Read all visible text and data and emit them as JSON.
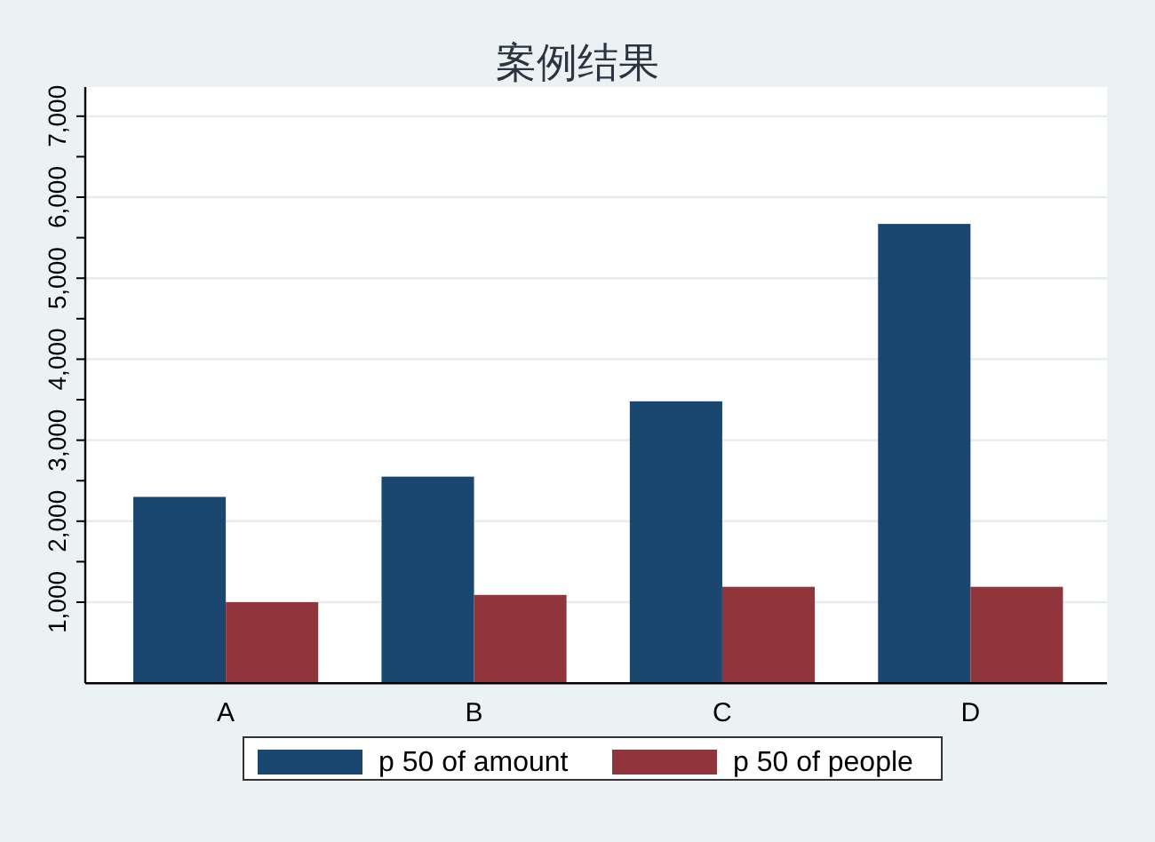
{
  "chart_data": {
    "type": "bar",
    "title": "案例结果",
    "categories": [
      "A",
      "B",
      "C",
      "D"
    ],
    "series": [
      {
        "name": "p 50 of amount",
        "color": "#1a476f",
        "values": [
          2300,
          2550,
          3480,
          5670
        ]
      },
      {
        "name": "p 50 of people",
        "color": "#90353b",
        "values": [
          1000,
          1090,
          1190,
          1190
        ]
      }
    ],
    "ylim": [
      0,
      7360
    ],
    "yticks": [
      {
        "value": 1000,
        "label": "1,000"
      },
      {
        "value": 1500,
        "label": null
      },
      {
        "value": 2000,
        "label": "2,000"
      },
      {
        "value": 2500,
        "label": null
      },
      {
        "value": 3000,
        "label": "3,000"
      },
      {
        "value": 3500,
        "label": null
      },
      {
        "value": 4000,
        "label": "4,000"
      },
      {
        "value": 4500,
        "label": null
      },
      {
        "value": 5000,
        "label": "5,000"
      },
      {
        "value": 5500,
        "label": null
      },
      {
        "value": 6000,
        "label": "6,000"
      },
      {
        "value": 6500,
        "label": null
      },
      {
        "value": 7000,
        "label": "7,000"
      }
    ],
    "grid": "y",
    "legend": "bottom"
  }
}
